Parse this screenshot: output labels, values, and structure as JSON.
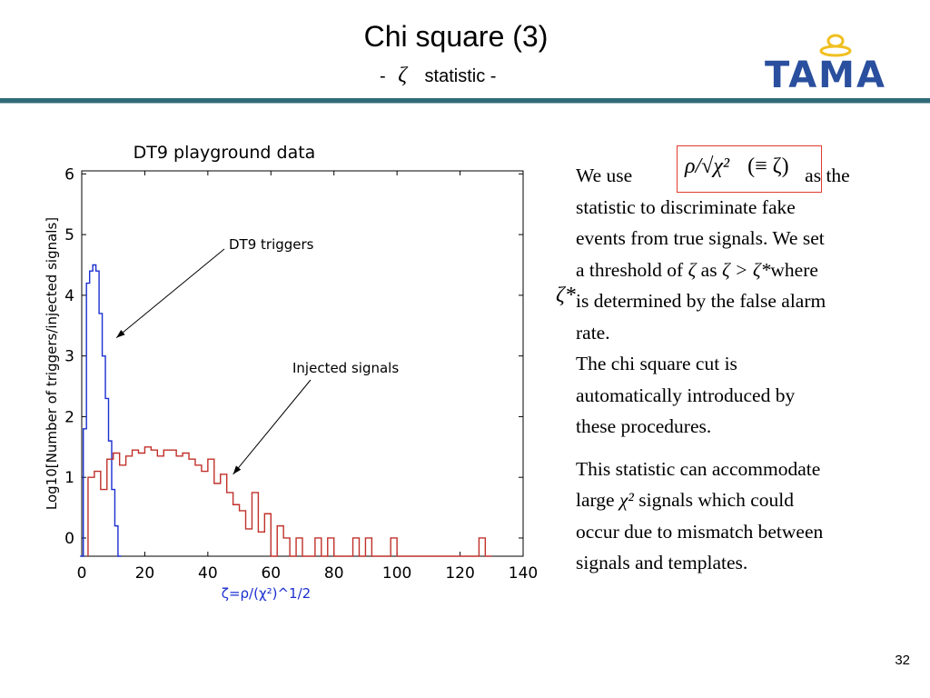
{
  "slide": {
    "title": "Chi square (3)",
    "subtitle_prefix": "-",
    "subtitle_symbol": "ζ",
    "subtitle_suffix": "statistic -",
    "page_number": "32",
    "logo_text": "TAMA"
  },
  "colors": {
    "rule": "#2f6a78",
    "triggers": "#1a2fd0",
    "signals": "#c0302a",
    "formula_box": "#e23a2e",
    "logo": "#2a4f9e"
  },
  "formula": {
    "expr": "ρ/√χ²",
    "equiv": "(≡ ζ)"
  },
  "text": {
    "p1_a": "We use",
    "p1_b": "as the",
    "p1_c": "statistic to discriminate fake",
    "p1_d": "events from true signals. We set",
    "p1_e_a": "a threshold of",
    "p1_e_b": "ζ",
    "p1_e_c": "as",
    "p1_e_d": "ζ > ζ*",
    "p1_e_e": "where",
    "zeta_star": "ζ*",
    "p1_f": "is determined by the false alarm",
    "p1_g": "rate.",
    "p2_a": "The chi square cut is",
    "p2_b": "automatically introduced by",
    "p2_c": "these procedures.",
    "p3_a": "This statistic can accommodate",
    "p3_b_a": "large",
    "p3_b_b": "χ²",
    "p3_b_c": "signals  which could",
    "p3_c": "occur due to mismatch between",
    "p3_d": "signals and templates."
  },
  "chart_data": {
    "type": "histogram",
    "title": "DT9 playground data",
    "xlabel": "ζ=ρ/(χ²)^1/2",
    "ylabel": "Log10[Number of triggers/injected signals]",
    "xlim": [
      0,
      140
    ],
    "ylim": [
      -0.3,
      6.05
    ],
    "xticks": [
      0,
      20,
      40,
      60,
      80,
      100,
      120,
      140
    ],
    "yticks": [
      0,
      1,
      2,
      3,
      4,
      5,
      6
    ],
    "annotations": [
      {
        "text": "DT9 triggers",
        "points_to": [
          11,
          3.3
        ]
      },
      {
        "text": "Injected signals",
        "points_to": [
          48,
          1.05
        ]
      }
    ],
    "series": [
      {
        "name": "DT9 triggers",
        "x": [
          0,
          1,
          2,
          3,
          4,
          5,
          6,
          7,
          8,
          9,
          10,
          11,
          12
        ],
        "values": [
          -0.3,
          1.8,
          4.2,
          4.4,
          4.5,
          4.4,
          3.7,
          3.0,
          2.3,
          1.6,
          0.8,
          0.2,
          -0.3
        ]
      },
      {
        "name": "Injected signals",
        "x": [
          3,
          5,
          7,
          9,
          11,
          13,
          15,
          17,
          19,
          21,
          23,
          25,
          27,
          29,
          31,
          33,
          35,
          37,
          39,
          41,
          43,
          45,
          47,
          49,
          51,
          53,
          55,
          57,
          59,
          61,
          63,
          65,
          67,
          69,
          71,
          73,
          75,
          77,
          79,
          81,
          83,
          85,
          87,
          89,
          91,
          93,
          95,
          97,
          99,
          101,
          103,
          105,
          107,
          109,
          111,
          113,
          115,
          117,
          119,
          121,
          123,
          125,
          127,
          129
        ],
        "values": [
          1.0,
          1.1,
          0.8,
          1.3,
          1.4,
          1.2,
          1.35,
          1.45,
          1.4,
          1.5,
          1.45,
          1.35,
          1.45,
          1.45,
          1.35,
          1.4,
          1.3,
          1.2,
          1.1,
          1.3,
          0.9,
          1.05,
          0.75,
          0.55,
          0.45,
          0.15,
          0.75,
          0.1,
          0.4,
          -0.3,
          0.2,
          0.0,
          -0.3,
          0.0,
          -0.3,
          -0.3,
          0.0,
          -0.3,
          0.0,
          -0.3,
          -0.3,
          -0.3,
          0.0,
          -0.3,
          0.0,
          -0.3,
          -0.3,
          -0.3,
          0.0,
          -0.3,
          -0.3,
          -0.3,
          -0.3,
          -0.3,
          -0.3,
          -0.3,
          -0.3,
          -0.3,
          -0.3,
          -0.3,
          -0.3,
          -0.3,
          0.0,
          -0.3
        ]
      }
    ]
  }
}
